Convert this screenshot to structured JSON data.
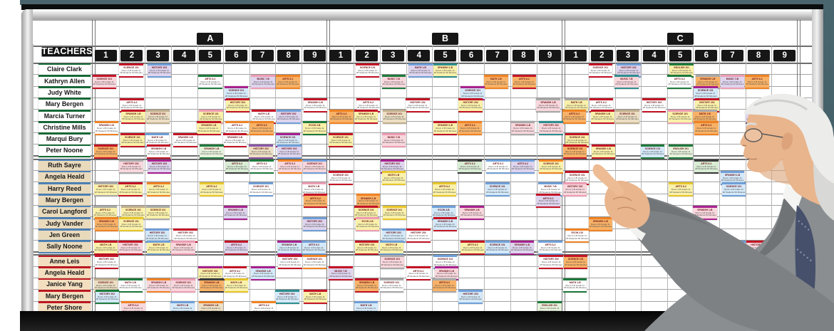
{
  "scene": {
    "wall_color": "#4a646d",
    "frame_color": "#d8d8d8",
    "shadow_color": "#0b0b0b",
    "board_color": "#ffffff"
  },
  "board": {
    "teachers_label": "TEACHERS",
    "sections": [
      {
        "label": "A",
        "cols": [
          "1",
          "2",
          "3",
          "4",
          "5",
          "6",
          "7",
          "8",
          "9"
        ]
      },
      {
        "label": "B",
        "cols": [
          "1",
          "2",
          "3",
          "4",
          "5",
          "6",
          "7",
          "8",
          "9"
        ]
      },
      {
        "label": "C",
        "cols": [
          "1",
          "2",
          "3",
          "4",
          "5",
          "6",
          "7",
          "8",
          "9"
        ]
      }
    ]
  },
  "teachers": {
    "groups": [
      {
        "plate_style": "green",
        "names": [
          "Claire Clark",
          "Kathryn Allen",
          "Judy White",
          "Mary Bergen",
          "Marcia Turner",
          "Christine Mills",
          "Marqui Bury",
          "Peter Noone"
        ]
      },
      {
        "plate_style": "blue",
        "names": [
          "Ruth Sayre",
          "Angela Heald",
          "Harry Reed",
          "Mary Bergen",
          "Carol Langford",
          "Judy Vander",
          "Jen Green",
          "Sally Noone"
        ]
      },
      {
        "plate_style": "red",
        "names": [
          "Anne Leis",
          "Angela Heald",
          "Janice Yang",
          "Mary Bergen",
          "Peter Shore"
        ]
      }
    ]
  },
  "palette": {
    "stripes": {
      "rd": "#c41426",
      "bl": "#6f9fd8",
      "gn": "#1e7a3c",
      "dk": "#3c3c3c",
      "gy": "#a9a9a9",
      "or": "#f08223",
      "mg": "#a8218e",
      "pk": "#ef9db4",
      "tl": "#2d8e8e",
      "yl": "#e8c62b",
      "tn": "#bfae8e",
      "pu": "#8a56a8"
    },
    "bodies": {
      "wh": "#ffffff",
      "pk": "#f8d7dd",
      "lv": "#ded4ee",
      "cy": "#d4e9f9",
      "yl": "#faf1aa",
      "or": "#f8b267",
      "gn": "#d9ecd4",
      "pg": "#e7f2dc",
      "tn": "#ecdfc3",
      "lo": "#f9cf9f"
    }
  },
  "subjects": {
    "sci": "SCIENCE 101",
    "his": "HISTORY 202",
    "mat": "MATH 1-B",
    "art": "ARTS 6-2",
    "spa": "SPANISH 1-B",
    "eng": "ENGLISH 101",
    "mus": "MUSIC 7-B",
    "eco": "ECON 2-B"
  },
  "card_template": {
    "line2": "Room 2-B Grade 11",
    "line3": "28 Students 50 Minutes"
  },
  "cards": {
    "g0r0": [
      [
        2,
        "rd",
        "wh",
        "sci"
      ],
      [
        3,
        "bl",
        "lv",
        "his"
      ],
      [
        11,
        "rd",
        "wh",
        "sci"
      ],
      [
        13,
        "bl",
        "lv",
        "mat"
      ],
      [
        14,
        "tl",
        "yl",
        "spa"
      ],
      [
        20,
        "rd",
        "wh",
        "sci"
      ],
      [
        21,
        "bl",
        "lv",
        "his"
      ],
      [
        23,
        "gn",
        "yl",
        "eng"
      ]
    ],
    "g0r1": [
      [
        1,
        "rd",
        "pk",
        "sci"
      ],
      [
        5,
        "gn",
        "wh",
        "art"
      ],
      [
        7,
        "pk",
        "lv",
        "mus"
      ],
      [
        8,
        "or",
        "or",
        "art"
      ],
      [
        12,
        "gn",
        "pk",
        "mus"
      ],
      [
        16,
        "or",
        "or",
        "mat"
      ],
      [
        17,
        "rd",
        "or",
        "art"
      ],
      [
        21,
        "tl",
        "pk",
        "mus"
      ],
      [
        23,
        "gn",
        "wh",
        "art"
      ],
      [
        24,
        "gy",
        "or",
        "spa"
      ],
      [
        25,
        "pk",
        "lv",
        "mus"
      ],
      [
        26,
        "or",
        "or",
        "art"
      ]
    ],
    "g0r2": [
      [
        6,
        "mg",
        "cy",
        "sci"
      ],
      [
        15,
        "mg",
        "cy",
        "sci"
      ],
      [
        24,
        "mg",
        "cy",
        "sci"
      ]
    ],
    "g0r3": [
      [
        2,
        "rd",
        "wh",
        "art"
      ],
      [
        6,
        "rd",
        "yl",
        "his"
      ],
      [
        9,
        "rd",
        "wh",
        "spa"
      ],
      [
        11,
        "rd",
        "wh",
        "art"
      ],
      [
        13,
        "rd",
        "wh",
        "his"
      ],
      [
        15,
        "rd",
        "yl",
        "his"
      ],
      [
        18,
        "gy",
        "pk",
        "spa"
      ],
      [
        19,
        "gy",
        "yl",
        "mat"
      ],
      [
        20,
        "rd",
        "wh",
        "art"
      ],
      [
        22,
        "rd",
        "wh",
        "his"
      ],
      [
        24,
        "rd",
        "yl",
        "his"
      ],
      [
        27,
        "rd",
        "pk",
        "spa"
      ]
    ],
    "g0r4": [
      [
        2,
        "rd",
        "yl",
        "spa"
      ],
      [
        3,
        "tn",
        "tn",
        "sci"
      ],
      [
        5,
        "pk",
        "yl",
        "sci"
      ],
      [
        7,
        "rd",
        "wh",
        "mat"
      ],
      [
        8,
        "bl",
        "lv",
        "his"
      ],
      [
        10,
        "or",
        "or",
        "art"
      ],
      [
        11,
        "rd",
        "yl",
        "spa"
      ],
      [
        12,
        "tn",
        "tn",
        "sci"
      ],
      [
        19,
        "or",
        "or",
        "art"
      ],
      [
        20,
        "rd",
        "yl",
        "spa"
      ],
      [
        21,
        "tn",
        "tn",
        "sci"
      ],
      [
        23,
        "pk",
        "yl",
        "sci"
      ],
      [
        24,
        "gy",
        "or",
        "mat"
      ],
      [
        26,
        "dk",
        "lv",
        "his"
      ]
    ],
    "g0r5": [
      [
        1,
        "or",
        "wh",
        "spa"
      ],
      [
        5,
        "rd",
        "yl",
        "spa"
      ],
      [
        6,
        "or",
        "wh",
        "art"
      ],
      [
        7,
        "or",
        "or",
        "art"
      ],
      [
        9,
        "gn",
        "yl",
        "eco"
      ],
      [
        14,
        "rd",
        "yl",
        "spa"
      ],
      [
        15,
        "or",
        "or",
        "art"
      ],
      [
        17,
        "gy",
        "pk",
        "spa"
      ],
      [
        18,
        "tl",
        "pk",
        "his"
      ],
      [
        24,
        "or",
        "or",
        "art"
      ],
      [
        26,
        "pk",
        "pk",
        "his"
      ]
    ],
    "g0r6": [
      [
        2,
        "rd",
        "yl",
        "sci"
      ],
      [
        3,
        "bl",
        "wh",
        "mat"
      ],
      [
        4,
        "rd",
        "wh",
        "spa"
      ],
      [
        6,
        "rd",
        "wh",
        "spa"
      ],
      [
        8,
        "mg",
        "cy",
        "sci"
      ],
      [
        10,
        "rd",
        "yl",
        "sci"
      ],
      [
        12,
        "pk",
        "pk",
        "mus"
      ],
      [
        19,
        "rd",
        "yl",
        "sci"
      ]
    ],
    "g0r7": [
      [
        1,
        "rd",
        "or",
        "sci"
      ],
      [
        3,
        "rd",
        "wh",
        "spa"
      ],
      [
        5,
        "gn",
        "pg",
        "spa"
      ],
      [
        7,
        "pu",
        "tn",
        "his"
      ],
      [
        8,
        "bl",
        "lv",
        "his"
      ],
      [
        19,
        "rd",
        "or",
        "sci"
      ],
      [
        20,
        "rd",
        "yl",
        "spa"
      ],
      [
        22,
        "gn",
        "cy",
        "sci"
      ],
      [
        23,
        "gn",
        "pg",
        "eng"
      ]
    ],
    "g1r0": [
      [
        2,
        "gy",
        "pk",
        "his"
      ],
      [
        3,
        "mg",
        "lv",
        "his"
      ],
      [
        6,
        "dk",
        "gn",
        "art"
      ],
      [
        7,
        "gn",
        "wh",
        "art"
      ],
      [
        8,
        "or",
        "pk",
        "art"
      ],
      [
        9,
        "bl",
        "pk",
        "sci"
      ],
      [
        12,
        "mg",
        "lv",
        "his"
      ],
      [
        15,
        "dk",
        "gn",
        "art"
      ],
      [
        16,
        "bl",
        "wh",
        "art"
      ],
      [
        17,
        "bl",
        "lv",
        "art"
      ],
      [
        18,
        "or",
        "yl",
        "sci"
      ],
      [
        24,
        "dk",
        "gn",
        "art"
      ]
    ],
    "g1r1": [
      [
        10,
        "rd",
        "wh",
        "sci"
      ],
      [
        12,
        "yl",
        "yl",
        "mat"
      ],
      [
        19,
        "rd",
        "wh",
        "sci"
      ],
      [
        25,
        "bl",
        "cy",
        "spa"
      ]
    ],
    "g1r2": [
      [
        1,
        "gy",
        "yl",
        "his"
      ],
      [
        2,
        "rd",
        "yl",
        "art"
      ],
      [
        3,
        "or",
        "yl",
        "art"
      ],
      [
        5,
        "yl",
        "yl",
        "art"
      ],
      [
        7,
        "bl",
        "wh",
        "sci"
      ],
      [
        9,
        "pk",
        "wh",
        "mat"
      ],
      [
        14,
        "yl",
        "yl",
        "art"
      ],
      [
        16,
        "bl",
        "cy",
        "sci"
      ],
      [
        18,
        "bl",
        "wh",
        "mus"
      ],
      [
        19,
        "pk",
        "pk",
        "his"
      ],
      [
        23,
        "yl",
        "yl",
        "art"
      ],
      [
        25,
        "bl",
        "cy",
        "sci"
      ]
    ],
    "g1r3": [
      [
        9,
        "rd",
        "or",
        "art"
      ],
      [
        11,
        "or",
        "or",
        "spa"
      ],
      [
        18,
        "rd",
        "lv",
        "art"
      ]
    ],
    "g1r4": [
      [
        1,
        "gy",
        "yl",
        "art"
      ],
      [
        2,
        "tn",
        "yl",
        "sci"
      ],
      [
        3,
        "gy",
        "yl",
        "sci"
      ],
      [
        6,
        "mg",
        "lv",
        "spa"
      ],
      [
        11,
        "rd",
        "yl",
        "sci"
      ],
      [
        12,
        "yl",
        "yl",
        "sci"
      ],
      [
        14,
        "bl",
        "cy",
        "eco"
      ],
      [
        15,
        "mg",
        "pk",
        "spa"
      ],
      [
        22,
        "rd",
        "wh",
        "spa"
      ],
      [
        24,
        "mg",
        "pk",
        "spa"
      ]
    ],
    "g1r5": [
      [
        1,
        "or",
        "or",
        "spa"
      ],
      [
        2,
        "yl",
        "yl",
        "sci"
      ],
      [
        9,
        "bl",
        "lv",
        "his"
      ],
      [
        11,
        "pk",
        "yl",
        "eco"
      ],
      [
        14,
        "rd",
        "cy",
        "spa"
      ],
      [
        20,
        "or",
        "or",
        "spa"
      ]
    ],
    "g1r6": [
      [
        3,
        "bl",
        "cy",
        "his"
      ],
      [
        4,
        "rd",
        "wh",
        "his"
      ],
      [
        12,
        "bl",
        "cy",
        "his"
      ],
      [
        13,
        "rd",
        "wh",
        "his"
      ],
      [
        19,
        "or",
        "wh",
        "eco"
      ]
    ],
    "g1r7": [
      [
        1,
        "rd",
        "yl",
        "mat"
      ],
      [
        2,
        "rd",
        "pk",
        "his"
      ],
      [
        3,
        "bl",
        "yl",
        "mat"
      ],
      [
        4,
        "pk",
        "pk",
        "spa"
      ],
      [
        6,
        "rd",
        "lv",
        "art"
      ],
      [
        8,
        "mg",
        "cy",
        "spa"
      ],
      [
        9,
        "bl",
        "cy",
        "art"
      ],
      [
        11,
        "rd",
        "yl",
        "his"
      ],
      [
        12,
        "bl",
        "yl",
        "mat"
      ],
      [
        15,
        "rd",
        "yl",
        "art"
      ],
      [
        16,
        "bl",
        "cy",
        "sci"
      ],
      [
        17,
        "mg",
        "lv",
        "spa"
      ],
      [
        18,
        "bl",
        "wh",
        "art"
      ],
      [
        24,
        "rd",
        "yl",
        "art"
      ],
      [
        25,
        "bl",
        "cy",
        "sci"
      ],
      [
        26,
        "rd",
        "pk",
        "his"
      ]
    ],
    "g2r0": [
      [
        1,
        "rd",
        "wh",
        "his"
      ],
      [
        8,
        "rd",
        "wh",
        "his"
      ],
      [
        9,
        "or",
        "wh",
        "sci"
      ],
      [
        12,
        "gy",
        "pk",
        "sci"
      ],
      [
        14,
        "bl",
        "wh",
        "sci"
      ],
      [
        18,
        "rd",
        "wh",
        "his"
      ],
      [
        19,
        "rd",
        "or",
        "sci"
      ]
    ],
    "g2r1": [
      [
        5,
        "mg",
        "yl",
        "his"
      ],
      [
        6,
        "rd",
        "wh",
        "art"
      ],
      [
        7,
        "mg",
        "cy",
        "spa"
      ],
      [
        10,
        "rd",
        "lv",
        "mus"
      ],
      [
        13,
        "rd",
        "wh",
        "art"
      ],
      [
        14,
        "mg",
        "pk",
        "spa"
      ]
    ],
    "g2r2": [
      [
        1,
        "tn",
        "tn",
        "sci"
      ],
      [
        2,
        "gn",
        "wh",
        "mat"
      ],
      [
        3,
        "or",
        "pk",
        "spa"
      ],
      [
        4,
        "pk",
        "pk",
        "sci"
      ],
      [
        5,
        "dk",
        "or",
        "spa"
      ],
      [
        6,
        "yl",
        "yl",
        "mat"
      ],
      [
        11,
        "rd",
        "or",
        "spa"
      ],
      [
        12,
        "gy",
        "wh",
        "sci"
      ],
      [
        14,
        "gy",
        "or",
        "art"
      ],
      [
        19,
        "gn",
        "wh",
        "mat"
      ]
    ],
    "g2r3": [
      [
        1,
        "gn",
        "cy",
        "his"
      ],
      [
        8,
        "tl",
        "cy",
        "his"
      ],
      [
        9,
        "rd",
        "yl",
        "mat"
      ],
      [
        15,
        "bl",
        "cy",
        "his"
      ]
    ],
    "g2r4": [
      [
        2,
        "or",
        "pk",
        "art"
      ],
      [
        4,
        "bl",
        "cy",
        "mat"
      ],
      [
        5,
        "or",
        "tn",
        "spa"
      ],
      [
        7,
        "or",
        "wh",
        "art"
      ],
      [
        11,
        "bl",
        "cy",
        "mat"
      ],
      [
        18,
        "gn",
        "pg",
        "eng"
      ]
    ]
  }
}
